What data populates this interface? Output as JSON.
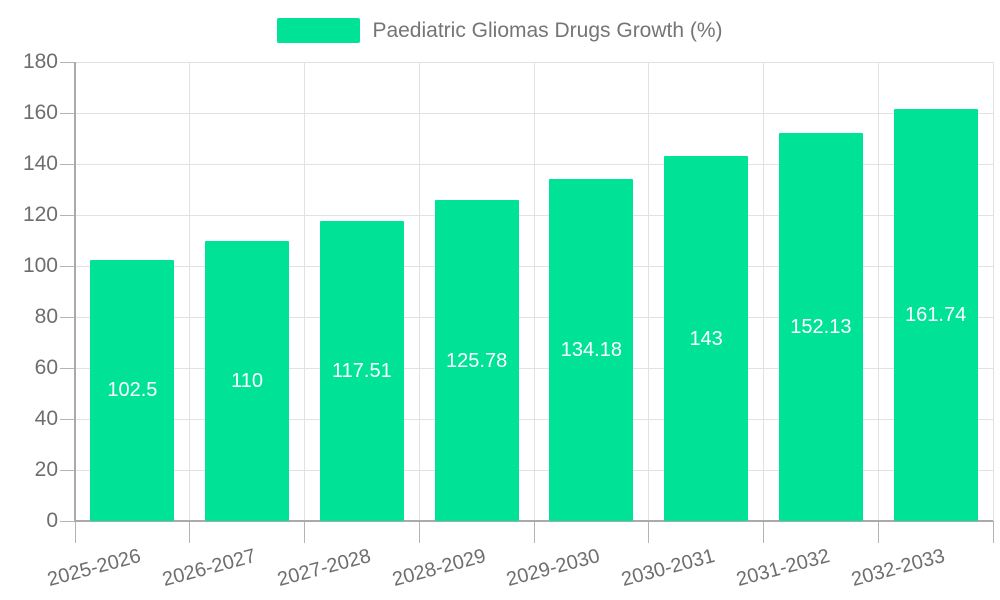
{
  "legend": {
    "label": "Paediatric Gliomas Drugs Growth (%)"
  },
  "colors": {
    "bar": "#00E396",
    "data_label": "#ffffff",
    "grid": "#e2e2e2",
    "axis": "#aaaaaa",
    "tick": "#b4b4b4",
    "axis_label": "#6e6e6e",
    "legend_text": "#757575",
    "background": "#ffffff"
  },
  "chart_data": {
    "type": "bar",
    "title": "Paediatric Gliomas Drugs Growth (%)",
    "categories": [
      "2025-2026",
      "2026-2027",
      "2027-2028",
      "2028-2029",
      "2029-2030",
      "2030-2031",
      "2031-2032",
      "2032-2033"
    ],
    "values": [
      102.5,
      110,
      117.51,
      125.78,
      134.18,
      143,
      152.13,
      161.74
    ],
    "data_labels": [
      "102.5",
      "110",
      "117.51",
      "125.78",
      "134.18",
      "143",
      "152.13",
      "161.74"
    ],
    "xlabel": "",
    "ylabel": "",
    "ylim": [
      0,
      180
    ],
    "ytick_step": 20,
    "ytick_labels": [
      "0",
      "20",
      "40",
      "60",
      "80",
      "100",
      "120",
      "140",
      "160",
      "180"
    ],
    "grid": "on",
    "legend_position": "top",
    "data_label_position": "center"
  }
}
